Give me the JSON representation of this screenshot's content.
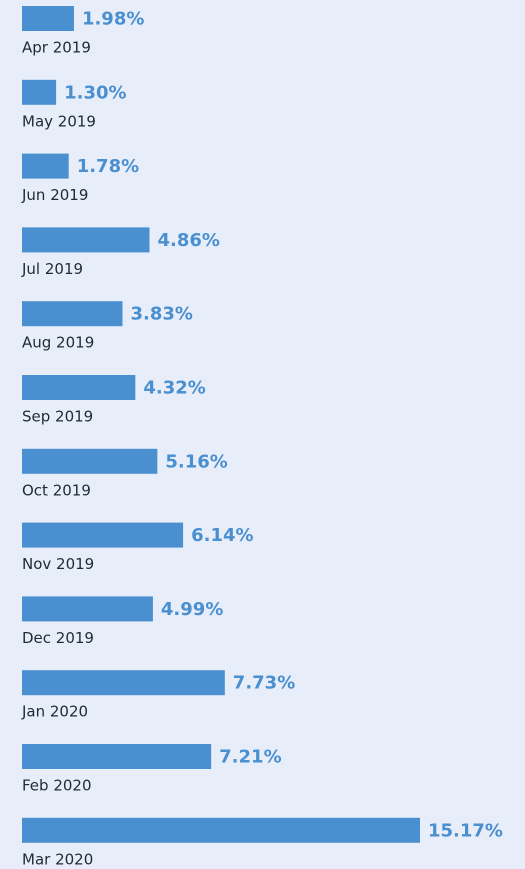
{
  "chart_data": {
    "type": "bar",
    "orientation": "horizontal",
    "color": "#4a8fd0",
    "categories": [
      "Apr 2019",
      "May 2019",
      "Jun 2019",
      "Jul 2019",
      "Aug 2019",
      "Sep 2019",
      "Oct 2019",
      "Nov 2019",
      "Dec 2019",
      "Jan 2020",
      "Feb 2020",
      "Mar 2020"
    ],
    "values": [
      1.98,
      1.3,
      1.78,
      4.86,
      3.83,
      4.32,
      5.16,
      6.14,
      4.99,
      7.73,
      7.21,
      15.17
    ],
    "value_labels": [
      "1.98%",
      "1.30%",
      "1.78%",
      "4.86%",
      "3.83%",
      "4.32%",
      "5.16%",
      "6.14%",
      "4.99%",
      "7.73%",
      "7.21%",
      "15.17%"
    ]
  }
}
